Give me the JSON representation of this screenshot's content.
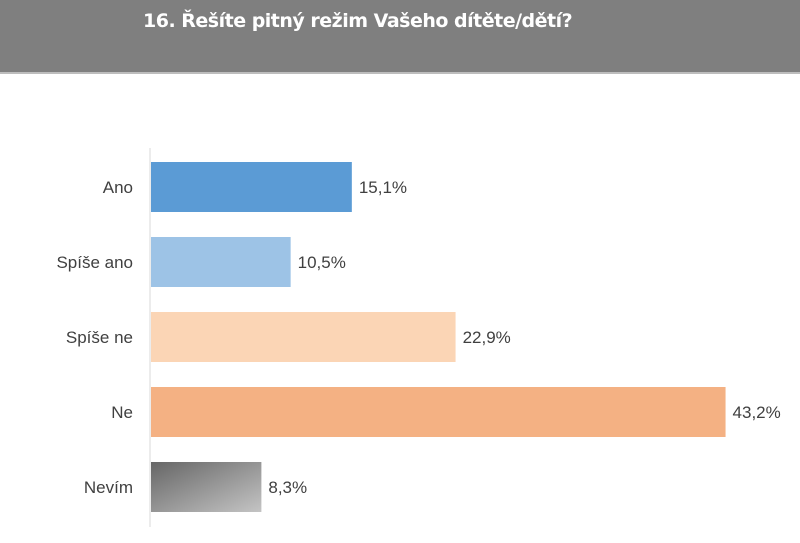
{
  "header": {
    "title": "16. Řešíte pitný režim Vašeho dítěte/dětí?"
  },
  "chart_data": {
    "type": "bar",
    "orientation": "horizontal",
    "title": "16. Řešíte pitný režim Vašeho dítěte/dětí?",
    "categories": [
      "Ano",
      "Spíše ano",
      "Spíše ne",
      "Ne",
      "Nevím"
    ],
    "values": [
      15.1,
      10.5,
      22.9,
      43.2,
      8.3
    ],
    "labels": [
      "15,1%",
      "10,5%",
      "22,9%",
      "43,2%",
      "8,3%"
    ],
    "colors": [
      "#5b9bd5",
      "#9dc3e6",
      "#fbd5b5",
      "#f4b183",
      "#8c8c8c"
    ],
    "unit": "%",
    "xlim": [
      0,
      45
    ],
    "grid": false,
    "xlabel": "",
    "ylabel": ""
  }
}
